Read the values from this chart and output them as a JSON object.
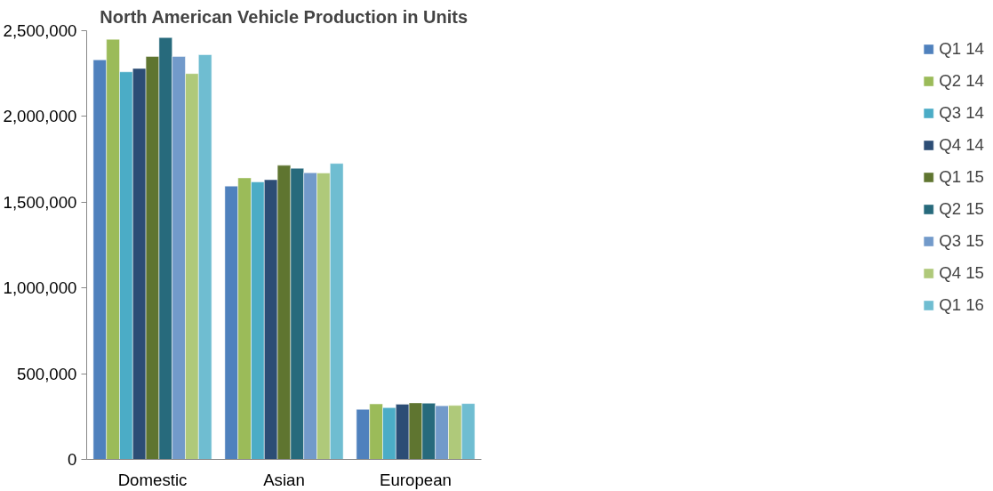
{
  "chart_data": {
    "type": "bar",
    "title": "North American Vehicle Production in Units",
    "categories": [
      "Domestic",
      "Asian",
      "European"
    ],
    "series": [
      {
        "name": "Q1 14",
        "color": "#4f81bd",
        "values": [
          2330000,
          1594000,
          292000
        ]
      },
      {
        "name": "Q2 14",
        "color": "#9bbb59",
        "values": [
          2450000,
          1642000,
          324000
        ]
      },
      {
        "name": "Q3 14",
        "color": "#4bacc6",
        "values": [
          2260000,
          1618000,
          302000
        ]
      },
      {
        "name": "Q4 14",
        "color": "#2c4d75",
        "values": [
          2280000,
          1631000,
          322000
        ]
      },
      {
        "name": "Q1 15",
        "color": "#5f7530",
        "values": [
          2350000,
          1715000,
          330000
        ]
      },
      {
        "name": "Q2 15",
        "color": "#276a7c",
        "values": [
          2460000,
          1698000,
          328000
        ]
      },
      {
        "name": "Q3 15",
        "color": "#729aca",
        "values": [
          2350000,
          1672000,
          313000
        ]
      },
      {
        "name": "Q4 15",
        "color": "#afc97a",
        "values": [
          2250000,
          1670000,
          315000
        ]
      },
      {
        "name": "Q1 16",
        "color": "#6fbdd1",
        "values": [
          2360000,
          1726000,
          326000
        ]
      }
    ],
    "ylim": [
      0,
      2500000
    ],
    "yticks": [
      {
        "value": 0,
        "label": "0"
      },
      {
        "value": 500000,
        "label": "500,000"
      },
      {
        "value": 1000000,
        "label": "1,000,000"
      },
      {
        "value": 1500000,
        "label": "1,500,000"
      },
      {
        "value": 2000000,
        "label": "2,000,000"
      },
      {
        "value": 2500000,
        "label": "2,500,000"
      }
    ],
    "grid": false,
    "legend": "right"
  }
}
